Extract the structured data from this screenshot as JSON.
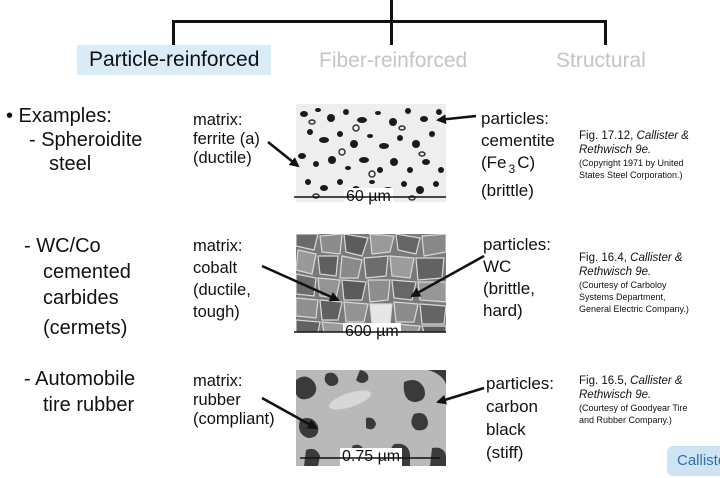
{
  "categories": {
    "particle": "Particle-reinforced",
    "fiber": "Fiber-reinforced",
    "structural": "Structural"
  },
  "rows": [
    {
      "example": [
        "• Examples:",
        "- Spheroidite",
        "steel"
      ],
      "matrix": [
        "matrix:",
        "ferrite (a)",
        "(ductile)"
      ],
      "particles": [
        "particles:",
        "cementite",
        "(Fe",
        "3",
        "C)",
        "(brittle)"
      ],
      "scale": "60 µm",
      "figure": {
        "num": "Fig. 17.12,",
        "author": "Callister &",
        "book": "Rethwisch 9e.",
        "credit": [
          "(Copyright 1971 by United",
          "States Steel Corporation.)"
        ]
      }
    },
    {
      "example": [
        "- WC/Co",
        "cemented",
        "carbides",
        "(cermets)"
      ],
      "matrix": [
        "matrix:",
        "cobalt",
        "(ductile,",
        "tough)"
      ],
      "particles": [
        "particles:",
        "WC",
        "(brittle,",
        "hard)"
      ],
      "scale": "600 µm",
      "figure": {
        "num": "Fig. 16.4,",
        "author": "Callister &",
        "book": "Rethwisch 9e.",
        "credit": [
          "(Courtesy of Carboloy",
          "Systems Department,",
          "General Electric Company.)"
        ]
      }
    },
    {
      "example": [
        "- Automobile",
        "tire rubber"
      ],
      "matrix": [
        "matrix:",
        "rubber",
        "(compliant)"
      ],
      "particles": [
        "particles:",
        "carbon",
        "black",
        "(stiff)"
      ],
      "scale": "0.75 µm",
      "figure": {
        "num": "Fig. 16.5,",
        "author": "Callister &",
        "book": "Rethwisch 9e.",
        "credit": [
          "(Courtesy of Goodyear Tire",
          "and Rubber Company.)"
        ]
      }
    }
  ],
  "reference_button": "Callister"
}
